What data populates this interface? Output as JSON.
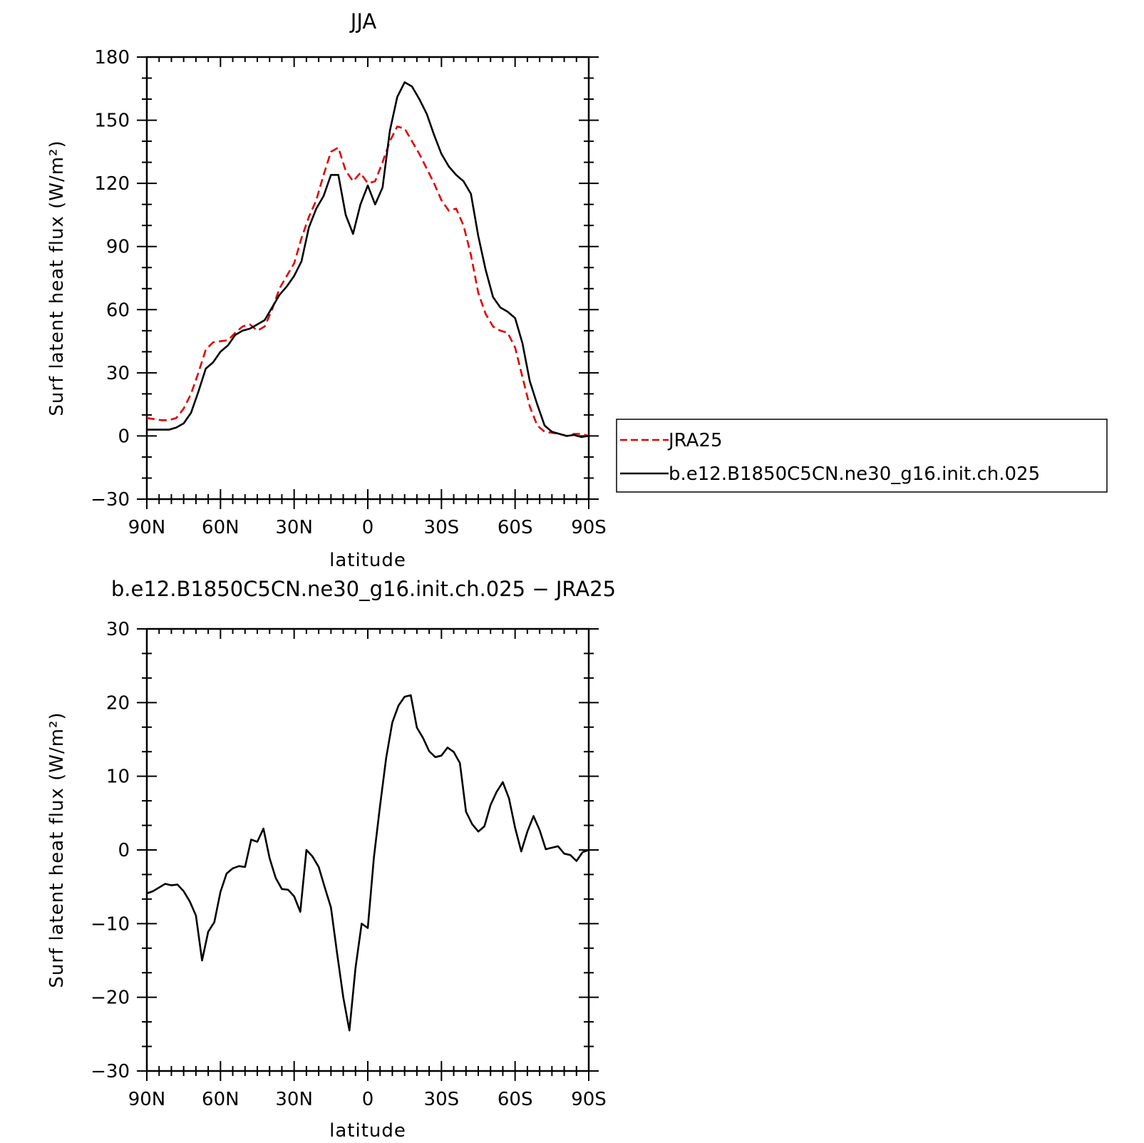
{
  "chart_data": [
    {
      "type": "line",
      "title": "JJA",
      "xlabel": "latitude",
      "ylabel": "Surf latent heat flux (W/m²)",
      "xlim": [
        -90,
        90
      ],
      "ylim": [
        -30,
        180
      ],
      "xticks": [
        -90,
        -60,
        -30,
        0,
        30,
        60,
        90
      ],
      "xtick_labels": [
        "90N",
        "60N",
        "30N",
        "0",
        "30S",
        "60S",
        "90S"
      ],
      "yticks": [
        -30,
        0,
        30,
        60,
        90,
        120,
        150,
        180
      ],
      "ytick_labels": [
        "−30",
        "0",
        "30",
        "60",
        "90",
        "120",
        "150",
        "180"
      ],
      "legend": "right",
      "x_note": "x values are latitude in degrees, negative = north (left), positive = south (right)",
      "series": [
        {
          "name": "JRA25",
          "color": "#e00000",
          "dash": true,
          "x": [
            -90,
            -87,
            -84,
            -81,
            -78,
            -75,
            -72,
            -69,
            -66,
            -63,
            -60,
            -57,
            -54,
            -51,
            -48,
            -45,
            -42,
            -39,
            -36,
            -33,
            -30,
            -27,
            -24,
            -21,
            -18,
            -15,
            -12,
            -9,
            -6,
            -3,
            0,
            3,
            6,
            9,
            12,
            15,
            18,
            21,
            24,
            27,
            30,
            33,
            36,
            39,
            42,
            45,
            48,
            51,
            54,
            57,
            60,
            63,
            66,
            69,
            72,
            75,
            78,
            81,
            84,
            87,
            90
          ],
          "y": [
            8.5,
            8,
            7.5,
            7.5,
            8.5,
            13,
            20,
            30,
            41,
            44.5,
            45,
            45.5,
            49,
            52,
            53,
            50,
            52,
            60,
            70,
            76,
            82,
            94,
            104,
            112,
            124,
            135,
            137,
            126,
            121,
            125,
            120,
            121,
            130,
            140,
            147,
            146,
            140,
            134,
            127,
            120,
            112,
            107,
            108,
            100,
            86,
            68,
            58,
            52,
            50,
            49,
            42,
            28,
            14,
            5,
            2,
            1.5,
            1,
            0,
            1,
            1,
            0
          ]
        },
        {
          "name": "b.e12.B1850C5CN.ne30_g16.init.ch.025",
          "color": "#000000",
          "dash": false,
          "x": [
            -90,
            -87,
            -84,
            -81,
            -78,
            -75,
            -72,
            -69,
            -66,
            -63,
            -60,
            -57,
            -54,
            -51,
            -48,
            -45,
            -42,
            -39,
            -36,
            -33,
            -30,
            -27,
            -24,
            -21,
            -18,
            -15,
            -12,
            -9,
            -6,
            -3,
            0,
            3,
            6,
            9,
            12,
            15,
            18,
            21,
            24,
            27,
            30,
            33,
            36,
            39,
            42,
            45,
            48,
            51,
            54,
            57,
            60,
            63,
            66,
            69,
            72,
            75,
            78,
            81,
            84,
            87,
            90
          ],
          "y": [
            3,
            3,
            3,
            3,
            4,
            6,
            11,
            21,
            32,
            35,
            40,
            43,
            48,
            50,
            51,
            53,
            55,
            61,
            67,
            71,
            76,
            83,
            99,
            108,
            114,
            124,
            124,
            105,
            96,
            110,
            119,
            110,
            118,
            145,
            161,
            168,
            166,
            160,
            153,
            143,
            134,
            128,
            124,
            121,
            115,
            95,
            79,
            66,
            61,
            59,
            56,
            44,
            26,
            15,
            5,
            2,
            1,
            0,
            0.5,
            -0.5,
            0
          ]
        }
      ]
    },
    {
      "type": "line",
      "title": "b.e12.B1850C5CN.ne30_g16.init.ch.025 − JRA25",
      "xlabel": "latitude",
      "ylabel": "Surf latent heat flux (W/m²)",
      "xlim": [
        -90,
        90
      ],
      "ylim": [
        -30,
        30
      ],
      "xticks": [
        -90,
        -60,
        -30,
        0,
        30,
        60,
        90
      ],
      "xtick_labels": [
        "90N",
        "60N",
        "30N",
        "0",
        "30S",
        "60S",
        "90S"
      ],
      "yticks": [
        -30,
        -20,
        -10,
        0,
        10,
        20,
        30
      ],
      "ytick_labels": [
        "−30",
        "−20",
        "−10",
        "0",
        "10",
        "20",
        "30"
      ],
      "series": [
        {
          "color": "#000000",
          "dash": false,
          "x": [
            -90,
            -87.5,
            -85,
            -82.5,
            -80,
            -77.5,
            -75,
            -72.5,
            -70,
            -67.5,
            -65,
            -62.5,
            -60,
            -57.5,
            -55,
            -52.5,
            -50,
            -47.5,
            -45,
            -42.5,
            -40,
            -37.5,
            -35,
            -32.5,
            -30,
            -27.5,
            -25,
            -22.5,
            -20,
            -17.5,
            -15,
            -12.5,
            -10,
            -7.5,
            -5,
            -2.5,
            0,
            2.5,
            5,
            7.5,
            10,
            12.5,
            15,
            17.5,
            20,
            22.5,
            25,
            27.5,
            30,
            32.5,
            35,
            37.5,
            40,
            42.5,
            45,
            47.5,
            50,
            52.5,
            55,
            57.5,
            60,
            62.5,
            65,
            67.5,
            70,
            72.5,
            75,
            77.5,
            80,
            82.5,
            85,
            87.5,
            90
          ],
          "y": [
            -5.9,
            -5.6,
            -5.1,
            -4.6,
            -4.8,
            -4.7,
            -5.6,
            -7.0,
            -8.9,
            -15.0,
            -11.1,
            -9.8,
            -5.7,
            -3.2,
            -2.5,
            -2.2,
            -2.3,
            1.4,
            1.1,
            2.9,
            -1.1,
            -3.8,
            -5.3,
            -5.4,
            -6.3,
            -8.4,
            0.0,
            -0.9,
            -2.3,
            -5.1,
            -7.8,
            -14.0,
            -20.0,
            -24.5,
            -16.0,
            -10.0,
            -10.6,
            -1.0,
            6.0,
            12.5,
            17.3,
            19.6,
            20.8,
            21.0,
            16.6,
            15.2,
            13.4,
            12.6,
            12.8,
            13.9,
            13.3,
            11.8,
            5.2,
            3.5,
            2.5,
            3.2,
            6.1,
            7.9,
            9.2,
            7.0,
            3.0,
            -0.2,
            2.5,
            4.6,
            2.7,
            0.1,
            0.3,
            0.5,
            -0.5,
            -0.7,
            -1.5,
            -0.3,
            0.0
          ]
        }
      ]
    }
  ]
}
